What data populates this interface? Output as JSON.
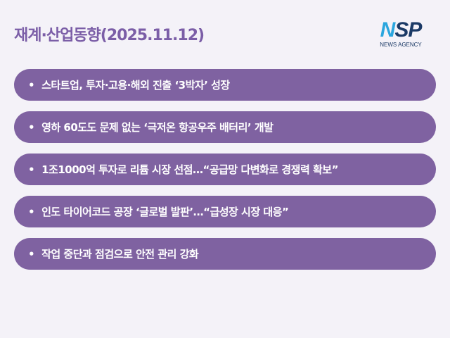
{
  "header": {
    "title": "재계·산업동향(2025.11.12)",
    "logo_text": "NSP",
    "logo_sub": "NEWS AGENCY"
  },
  "items": [
    {
      "label": "스타트업, 투자·고용·해외 진출 ‘3박자’ 성장"
    },
    {
      "label": "영하 60도도 문제 없는 ‘극저온 항공우주 배터리’ 개발"
    },
    {
      "label": "1조1000억 투자로 리튬 시장 선점…“공급망 다변화로 경쟁력 확보”"
    },
    {
      "label": "인도 타이어코드 공장 ‘글로벌 발판’…“급성장 시장 대응”"
    },
    {
      "label": "작업 중단과 점검으로 안전 관리 강화"
    }
  ],
  "colors": {
    "accent": "#7f62a1",
    "title": "#7b5ea7",
    "background": "#f4f2f8"
  }
}
